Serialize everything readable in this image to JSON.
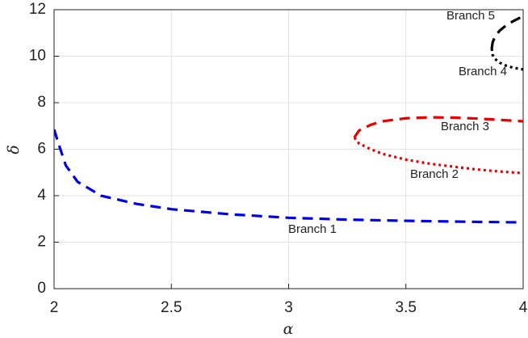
{
  "chart_data": {
    "type": "line",
    "x_label": "α",
    "y_label": "δ",
    "xlim": [
      2,
      4
    ],
    "ylim": [
      0,
      12
    ],
    "xticks": [
      2,
      2.5,
      3,
      3.5,
      4
    ],
    "yticks": [
      0,
      2,
      4,
      6,
      8,
      10,
      12
    ],
    "grid": true,
    "series": [
      {
        "name": "Branch 1",
        "color": "#0000e6",
        "line_style": "dashed",
        "x": [
          2.0,
          2.02,
          2.05,
          2.1,
          2.2,
          2.35,
          2.5,
          2.75,
          3.0,
          3.25,
          3.5,
          3.75,
          4.0
        ],
        "values": [
          6.85,
          6.2,
          5.3,
          4.6,
          4.0,
          3.65,
          3.42,
          3.2,
          3.05,
          2.97,
          2.92,
          2.88,
          2.85
        ]
      },
      {
        "name": "Branch 2",
        "color": "#e60000",
        "line_style": "dotted",
        "x": [
          3.28,
          3.3,
          3.35,
          3.4,
          3.5,
          3.6,
          3.7,
          3.8,
          3.9,
          4.0
        ],
        "values": [
          6.5,
          6.25,
          6.0,
          5.8,
          5.55,
          5.38,
          5.25,
          5.13,
          5.04,
          4.97
        ]
      },
      {
        "name": "Branch 3",
        "color": "#e60000",
        "line_style": "dashed",
        "x": [
          3.28,
          3.3,
          3.35,
          3.4,
          3.5,
          3.6,
          3.7,
          3.8,
          3.9,
          4.0
        ],
        "values": [
          6.5,
          6.8,
          7.05,
          7.2,
          7.33,
          7.37,
          7.36,
          7.32,
          7.26,
          7.2
        ]
      },
      {
        "name": "Branch 4",
        "color": "#000000",
        "line_style": "dotted",
        "x": [
          3.866,
          3.87,
          3.88,
          3.9,
          3.93,
          3.96,
          4.0
        ],
        "values": [
          10.33,
          10.05,
          9.88,
          9.72,
          9.58,
          9.5,
          9.43
        ]
      },
      {
        "name": "Branch 5",
        "color": "#000000",
        "line_style": "dashed",
        "x": [
          3.866,
          3.87,
          3.88,
          3.9,
          3.93,
          3.96,
          4.0
        ],
        "values": [
          10.33,
          10.6,
          10.85,
          11.1,
          11.35,
          11.52,
          11.72
        ]
      }
    ]
  }
}
